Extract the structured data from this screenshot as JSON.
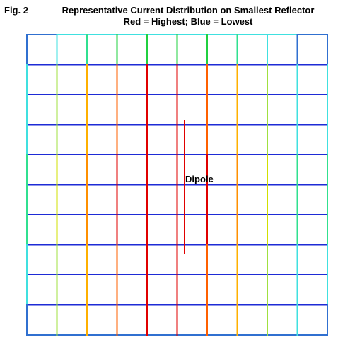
{
  "figure": {
    "label": "Fig. 2",
    "title": "Representative Current Distribution on Smallest Reflector",
    "subtitle": "Red = Highest; Blue = Lowest"
  },
  "dipole": {
    "label": "Dipole",
    "color": "#e00000"
  },
  "grid": {
    "columns": 10,
    "rows": 10,
    "vertical_segment_colors": [
      [
        "#3070d0",
        "#40e0e0",
        "#30e090",
        "#20d040",
        "#20d040",
        "#20d040",
        "#20d040",
        "#30e090",
        "#40e0e0",
        "#3070d0"
      ],
      [
        "#40e0e0",
        "#a0e040",
        "#ffb000",
        "#ff6000",
        "#e00000",
        "#e00000",
        "#ff6000",
        "#ffb000",
        "#a0e040",
        "#40e0e0"
      ],
      [
        "#40e0e0",
        "#a0e040",
        "#ffb000",
        "#ff6000",
        "#e00000",
        "#e00000",
        "#ff6000",
        "#ffb000",
        "#a0e040",
        "#40e0e0"
      ],
      [
        "#40e0e0",
        "#a0e040",
        "#ffb000",
        "#ff6000",
        "#e00000",
        "#e00000",
        "#ff6000",
        "#ffb000",
        "#a0e040",
        "#40e0e0"
      ],
      [
        "#30e090",
        "#d0e000",
        "#ff9000",
        "#e00000",
        "#e00000",
        "#e00000",
        "#e00000",
        "#ff9000",
        "#d0e000",
        "#30e090"
      ],
      [
        "#30e090",
        "#d0e000",
        "#ff9000",
        "#e00000",
        "#e00000",
        "#e00000",
        "#e00000",
        "#ff9000",
        "#d0e000",
        "#30e090"
      ],
      [
        "#30e090",
        "#d0e000",
        "#ff9000",
        "#e00000",
        "#e00000",
        "#e00000",
        "#e00000",
        "#ff9000",
        "#d0e000",
        "#30e090"
      ],
      [
        "#40e0e0",
        "#a0e040",
        "#ffb000",
        "#ff6000",
        "#e00000",
        "#e00000",
        "#ff6000",
        "#ffb000",
        "#a0e040",
        "#40e0e0"
      ],
      [
        "#40e0e0",
        "#a0e040",
        "#ffb000",
        "#ff6000",
        "#e00000",
        "#e00000",
        "#ff6000",
        "#ffb000",
        "#a0e040",
        "#40e0e0"
      ],
      [
        "#40e0e0",
        "#a0e040",
        "#ffb000",
        "#ff6000",
        "#e00000",
        "#e00000",
        "#ff6000",
        "#ffb000",
        "#a0e040",
        "#40e0e0"
      ]
    ],
    "vertical_edge_colors": {
      "left": [
        "#3070d0",
        "#40e0e0",
        "#40e0e0",
        "#40e0e0",
        "#30e090",
        "#30e090",
        "#30e090",
        "#40e0e0",
        "#40e0e0",
        "#3070d0"
      ],
      "right": [
        "#3070d0",
        "#40e0e0",
        "#40e0e0",
        "#40e0e0",
        "#30e090",
        "#30e090",
        "#30e090",
        "#40e0e0",
        "#40e0e0",
        "#3070d0"
      ]
    },
    "horizontal_line_colors": [
      [
        "#3070d0",
        "#40e0e0",
        "#40e0e0",
        "#40e0e0",
        "#40e0e0",
        "#40e0e0",
        "#40e0e0",
        "#40e0e0",
        "#40e0e0",
        "#3070d0"
      ],
      [
        "#1e2bd6",
        "#1e2bd6",
        "#1e2bd6",
        "#1e2bd6",
        "#1e2bd6",
        "#1e2bd6",
        "#1e2bd6",
        "#1e2bd6",
        "#1e2bd6",
        "#1e2bd6"
      ],
      [
        "#1e2bd6",
        "#1e2bd6",
        "#1e2bd6",
        "#1e2bd6",
        "#1e2bd6",
        "#1e2bd6",
        "#1e2bd6",
        "#1e2bd6",
        "#1e2bd6",
        "#1e2bd6"
      ],
      [
        "#1e2bd6",
        "#1e2bd6",
        "#1e2bd6",
        "#1e2bd6",
        "#1e2bd6",
        "#1e2bd6",
        "#1e2bd6",
        "#1e2bd6",
        "#1e2bd6",
        "#1e2bd6"
      ],
      [
        "#1e2bd6",
        "#1e2bd6",
        "#1e2bd6",
        "#1e2bd6",
        "#1e2bd6",
        "#1e2bd6",
        "#1e2bd6",
        "#1e2bd6",
        "#1e2bd6",
        "#1e2bd6"
      ],
      [
        "#1e2bd6",
        "#1e2bd6",
        "#1e2bd6",
        "#1e2bd6",
        "#1e2bd6",
        "#1e2bd6",
        "#1e2bd6",
        "#1e2bd6",
        "#1e2bd6",
        "#1e2bd6"
      ],
      [
        "#1e2bd6",
        "#1e2bd6",
        "#1e2bd6",
        "#1e2bd6",
        "#1e2bd6",
        "#1e2bd6",
        "#1e2bd6",
        "#1e2bd6",
        "#1e2bd6",
        "#1e2bd6"
      ],
      [
        "#1e2bd6",
        "#1e2bd6",
        "#1e2bd6",
        "#1e2bd6",
        "#1e2bd6",
        "#1e2bd6",
        "#1e2bd6",
        "#1e2bd6",
        "#1e2bd6",
        "#1e2bd6"
      ],
      [
        "#1e2bd6",
        "#1e2bd6",
        "#1e2bd6",
        "#1e2bd6",
        "#1e2bd6",
        "#1e2bd6",
        "#1e2bd6",
        "#1e2bd6",
        "#1e2bd6",
        "#1e2bd6"
      ],
      [
        "#1e2bd6",
        "#1e2bd6",
        "#1e2bd6",
        "#1e2bd6",
        "#1e2bd6",
        "#1e2bd6",
        "#1e2bd6",
        "#1e2bd6",
        "#1e2bd6",
        "#1e2bd6"
      ],
      [
        "#3070d0",
        "#3070d0",
        "#3070d0",
        "#3070d0",
        "#3070d0",
        "#3070d0",
        "#3070d0",
        "#3070d0",
        "#3070d0",
        "#3070d0"
      ]
    ]
  }
}
